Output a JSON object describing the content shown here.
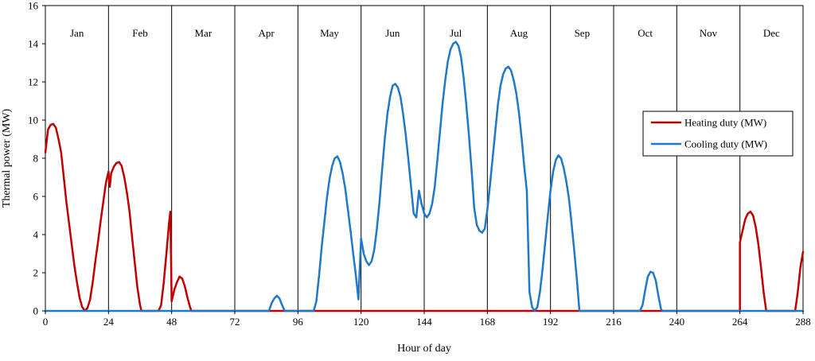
{
  "chart_data": {
    "type": "line",
    "title": "",
    "xlabel": "Hour of day",
    "ylabel": "Thermal power (MW)",
    "xlim": [
      0,
      288
    ],
    "ylim": [
      0,
      16
    ],
    "x_ticks": [
      0,
      24,
      48,
      72,
      96,
      120,
      144,
      168,
      192,
      216,
      240,
      264,
      288
    ],
    "y_ticks": [
      0,
      2,
      4,
      6,
      8,
      10,
      12,
      14,
      16
    ],
    "grid": false,
    "legend_position": "right",
    "months": [
      "Jan",
      "Feb",
      "Mar",
      "Apr",
      "May",
      "Jun",
      "Jul",
      "Aug",
      "Sep",
      "Oct",
      "Nov",
      "Dec"
    ],
    "series": [
      {
        "name": "Heating duty (MW)",
        "color": "#c00000",
        "points": [
          [
            0,
            8.3
          ],
          [
            1,
            9.5
          ],
          [
            2,
            9.75
          ],
          [
            3,
            9.8
          ],
          [
            4,
            9.6
          ],
          [
            5,
            9.0
          ],
          [
            6,
            8.3
          ],
          [
            7,
            7.0
          ],
          [
            8,
            5.7
          ],
          [
            9,
            4.6
          ],
          [
            10,
            3.5
          ],
          [
            11,
            2.4
          ],
          [
            12,
            1.5
          ],
          [
            13,
            0.7
          ],
          [
            14,
            0.2
          ],
          [
            15,
            0.0
          ],
          [
            16,
            0.15
          ],
          [
            17,
            0.6
          ],
          [
            18,
            1.5
          ],
          [
            19,
            2.6
          ],
          [
            20,
            3.6
          ],
          [
            21,
            4.7
          ],
          [
            22,
            5.7
          ],
          [
            23,
            6.7
          ],
          [
            24,
            7.3
          ],
          [
            24.5,
            6.5
          ],
          [
            25,
            7.2
          ],
          [
            26,
            7.55
          ],
          [
            27,
            7.75
          ],
          [
            28,
            7.8
          ],
          [
            29,
            7.6
          ],
          [
            30,
            7.0
          ],
          [
            31,
            6.2
          ],
          [
            32,
            5.2
          ],
          [
            33,
            3.8
          ],
          [
            34,
            2.5
          ],
          [
            35,
            1.2
          ],
          [
            36,
            0.3
          ],
          [
            36.5,
            0.0
          ],
          [
            43,
            0.0
          ],
          [
            44,
            0.3
          ],
          [
            45,
            1.5
          ],
          [
            46,
            3.0
          ],
          [
            47,
            4.6
          ],
          [
            47.5,
            5.2
          ],
          [
            48,
            0.5
          ],
          [
            49,
            1.1
          ],
          [
            50,
            1.5
          ],
          [
            51,
            1.8
          ],
          [
            52,
            1.7
          ],
          [
            53,
            1.3
          ],
          [
            54,
            0.7
          ],
          [
            55,
            0.2
          ],
          [
            55.5,
            0.0
          ],
          [
            100,
            0.0
          ],
          [
            264,
            0.0
          ],
          [
            263,
            0.0
          ],
          [
            264,
            3.6
          ],
          [
            265,
            4.2
          ],
          [
            266,
            4.8
          ],
          [
            267,
            5.1
          ],
          [
            268,
            5.2
          ],
          [
            269,
            5.0
          ],
          [
            270,
            4.4
          ],
          [
            271,
            3.5
          ],
          [
            272,
            2.3
          ],
          [
            273,
            1.0
          ],
          [
            274,
            0.0
          ],
          [
            285,
            0.0
          ],
          [
            286,
            1.0
          ],
          [
            287,
            2.3
          ],
          [
            288,
            3.1
          ]
        ]
      },
      {
        "name": "Cooling duty (MW)",
        "color": "#1f78c8",
        "points": [
          [
            0,
            0.0
          ],
          [
            85,
            0.0
          ],
          [
            86,
            0.4
          ],
          [
            87,
            0.65
          ],
          [
            88,
            0.8
          ],
          [
            89,
            0.65
          ],
          [
            90,
            0.3
          ],
          [
            91,
            0.0
          ],
          [
            102,
            0.0
          ],
          [
            103,
            0.5
          ],
          [
            104,
            1.8
          ],
          [
            105,
            3.3
          ],
          [
            106,
            4.6
          ],
          [
            107,
            5.9
          ],
          [
            108,
            6.9
          ],
          [
            109,
            7.6
          ],
          [
            110,
            8.0
          ],
          [
            111,
            8.1
          ],
          [
            112,
            7.8
          ],
          [
            113,
            7.2
          ],
          [
            114,
            6.4
          ],
          [
            115,
            5.3
          ],
          [
            116,
            4.2
          ],
          [
            117,
            3.0
          ],
          [
            118,
            1.9
          ],
          [
            119,
            0.6
          ],
          [
            120,
            3.8
          ],
          [
            121,
            3.0
          ],
          [
            122,
            2.6
          ],
          [
            123,
            2.4
          ],
          [
            124,
            2.6
          ],
          [
            125,
            3.2
          ],
          [
            126,
            4.3
          ],
          [
            127,
            5.7
          ],
          [
            128,
            7.4
          ],
          [
            129,
            9.0
          ],
          [
            130,
            10.3
          ],
          [
            131,
            11.2
          ],
          [
            132,
            11.8
          ],
          [
            133,
            11.9
          ],
          [
            134,
            11.7
          ],
          [
            135,
            11.2
          ],
          [
            136,
            10.3
          ],
          [
            137,
            9.2
          ],
          [
            138,
            7.9
          ],
          [
            139,
            6.5
          ],
          [
            140,
            5.1
          ],
          [
            141,
            4.9
          ],
          [
            142,
            6.3
          ],
          [
            143,
            5.6
          ],
          [
            144,
            5.1
          ],
          [
            145,
            4.9
          ],
          [
            146,
            5.1
          ],
          [
            147,
            5.6
          ],
          [
            148,
            6.5
          ],
          [
            149,
            7.9
          ],
          [
            150,
            9.4
          ],
          [
            151,
            10.9
          ],
          [
            152,
            12.1
          ],
          [
            153,
            13.1
          ],
          [
            154,
            13.7
          ],
          [
            155,
            14.0
          ],
          [
            156,
            14.1
          ],
          [
            157,
            13.9
          ],
          [
            158,
            13.3
          ],
          [
            159,
            12.2
          ],
          [
            160,
            10.8
          ],
          [
            161,
            9.2
          ],
          [
            162,
            7.4
          ],
          [
            163,
            5.4
          ],
          [
            164,
            4.5
          ],
          [
            165,
            4.2
          ],
          [
            166,
            4.1
          ],
          [
            167,
            4.3
          ],
          [
            168,
            5.3
          ],
          [
            169,
            6.6
          ],
          [
            170,
            8.0
          ],
          [
            171,
            9.4
          ],
          [
            172,
            10.8
          ],
          [
            173,
            11.8
          ],
          [
            174,
            12.4
          ],
          [
            175,
            12.7
          ],
          [
            176,
            12.8
          ],
          [
            177,
            12.6
          ],
          [
            178,
            12.1
          ],
          [
            179,
            11.4
          ],
          [
            180,
            10.4
          ],
          [
            181,
            9.1
          ],
          [
            182,
            7.6
          ],
          [
            183,
            6.3
          ],
          [
            184,
            1.0
          ],
          [
            185,
            0.2
          ],
          [
            186,
            0.0
          ],
          [
            187,
            0.2
          ],
          [
            188,
            1.0
          ],
          [
            189,
            2.2
          ],
          [
            190,
            3.6
          ],
          [
            191,
            5.0
          ],
          [
            192,
            6.3
          ],
          [
            193,
            7.3
          ],
          [
            194,
            7.9
          ],
          [
            195,
            8.15
          ],
          [
            196,
            8.0
          ],
          [
            197,
            7.5
          ],
          [
            198,
            6.8
          ],
          [
            199,
            5.9
          ],
          [
            200,
            4.6
          ],
          [
            201,
            3.2
          ],
          [
            202,
            1.7
          ],
          [
            203,
            0.0
          ],
          [
            226,
            0.0
          ],
          [
            227,
            0.3
          ],
          [
            228,
            1.1
          ],
          [
            229,
            1.8
          ],
          [
            230,
            2.05
          ],
          [
            231,
            2.0
          ],
          [
            232,
            1.6
          ],
          [
            233,
            0.8
          ],
          [
            234,
            0.1
          ],
          [
            234.5,
            0.0
          ],
          [
            288,
            0.0
          ]
        ]
      }
    ]
  }
}
